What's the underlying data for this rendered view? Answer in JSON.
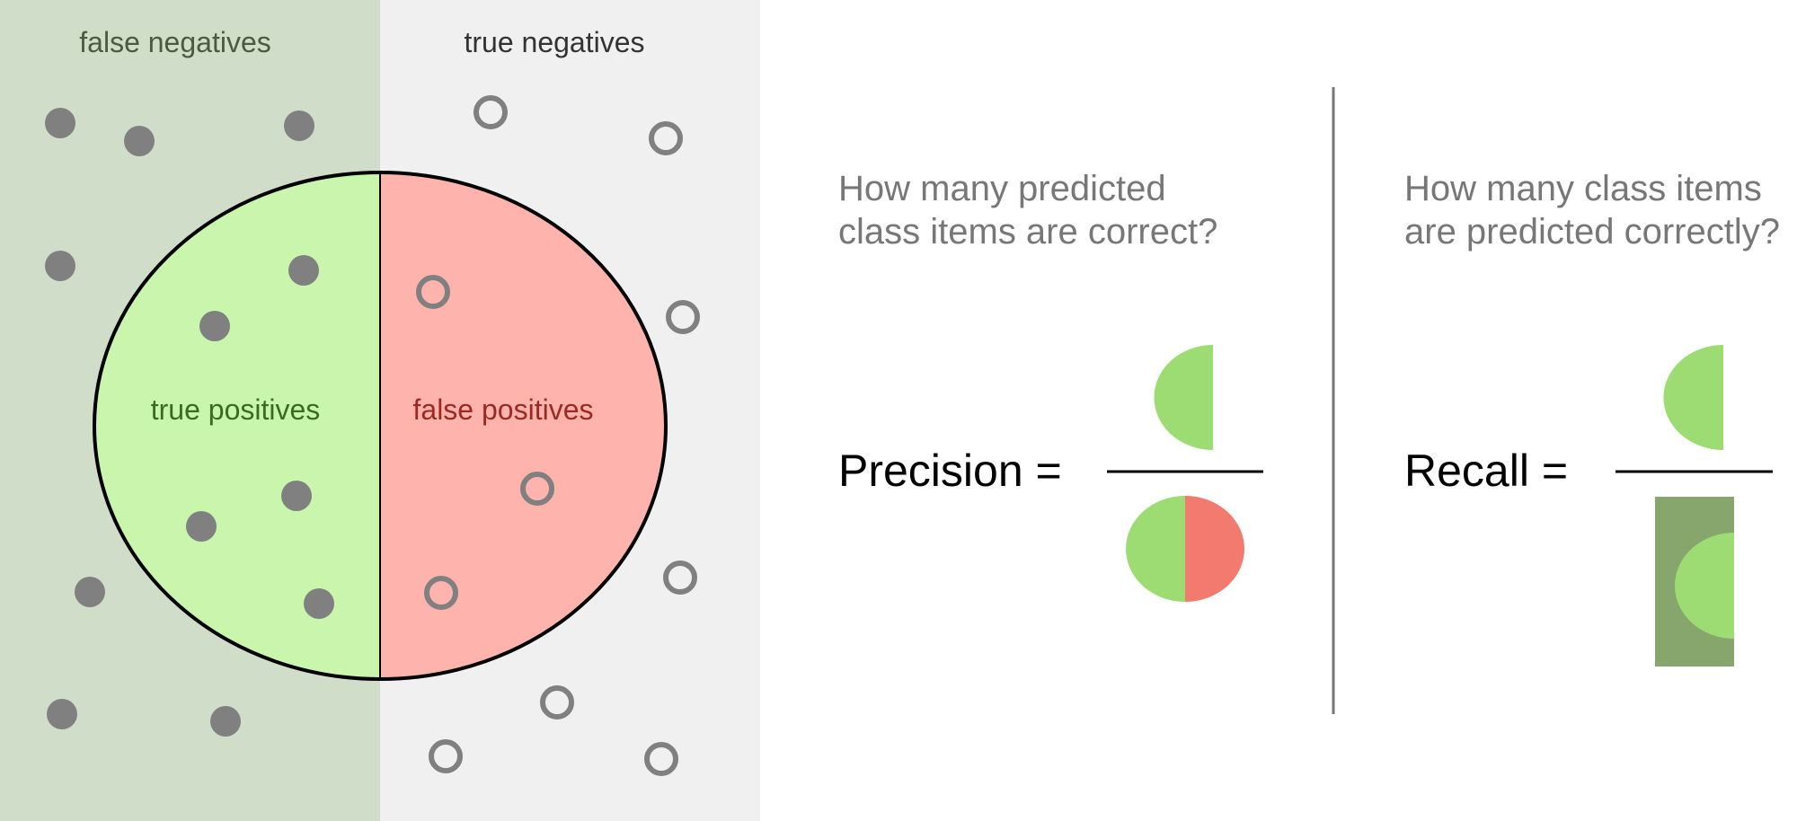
{
  "venn": {
    "false_negatives_label": "false negatives",
    "true_negatives_label": "true negatives",
    "true_positives_label": "true positives",
    "false_positives_label": "false positives"
  },
  "precision": {
    "question_line1": "How many predicted",
    "question_line2": "class items are correct?",
    "label": "Precision ="
  },
  "recall": {
    "question_line1": "How many class items",
    "question_line2": "are predicted correctly?",
    "label": "Recall ="
  },
  "colors": {
    "relevant_bg": "#d0ddc9",
    "irrelevant_bg": "#f0f0f0",
    "true_positive_fill": "#c9f5ad",
    "false_positive_fill": "#ffb3ad",
    "icon_green": "#9cdc72",
    "icon_red": "#f27a6e",
    "recall_box": "#86a66e",
    "dot_gray": "#808080",
    "question_text": "#777777",
    "tp_text": "#3b6b22",
    "fp_text": "#9b2a22",
    "fn_text": "#4a5a40"
  }
}
